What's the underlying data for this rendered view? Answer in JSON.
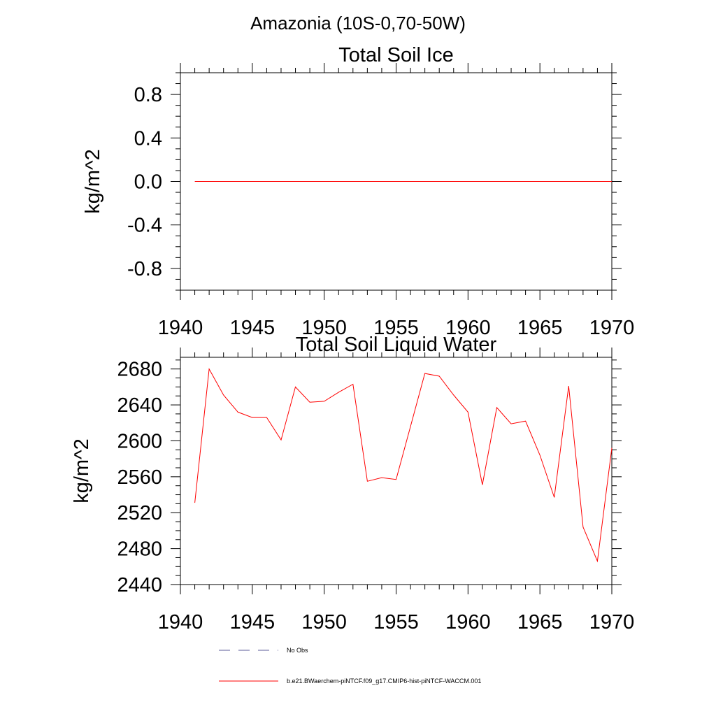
{
  "figure": {
    "main_title": "Amazonia (10S-0,70-50W)"
  },
  "legend": {
    "obs_label": "No Obs",
    "obs_color": "#5b5b9a",
    "model_label": "b.e21.BWaerchem-piNTCF.f09_g17.CMIP6-hist-piNTCF-WACCM.001",
    "model_color": "#ff0000"
  },
  "chart_data": [
    {
      "type": "line",
      "title": "Total Soil Ice",
      "xlabel": "",
      "ylabel": "kg/m^2",
      "xlim": [
        1940,
        1970
      ],
      "ylim": [
        -1.0,
        1.0
      ],
      "x_ticks": [
        1940,
        1945,
        1950,
        1955,
        1960,
        1965,
        1970
      ],
      "y_ticks": [
        -0.8,
        -0.4,
        0.0,
        0.4,
        0.8
      ],
      "y_tick_labels": [
        "-0.8",
        "-0.4",
        "0.0",
        "0.4",
        "0.8"
      ],
      "y_minor_step": 0.1,
      "x_minor_step": 1,
      "grid": false,
      "series": [
        {
          "color": "#ff0000",
          "x": [
            1941,
            1942,
            1943,
            1944,
            1945,
            1946,
            1947,
            1948,
            1949,
            1950,
            1951,
            1952,
            1953,
            1954,
            1955,
            1956,
            1957,
            1958,
            1959,
            1960,
            1961,
            1962,
            1963,
            1964,
            1965,
            1966,
            1967,
            1968,
            1969,
            1970
          ],
          "y": [
            0,
            0,
            0,
            0,
            0,
            0,
            0,
            0,
            0,
            0,
            0,
            0,
            0,
            0,
            0,
            0,
            0,
            0,
            0,
            0,
            0,
            0,
            0,
            0,
            0,
            0,
            0,
            0,
            0,
            0
          ]
        }
      ]
    },
    {
      "type": "line",
      "title": "Total Soil Liquid Water",
      "xlabel": "",
      "ylabel": "kg/m^2",
      "xlim": [
        1940,
        1970
      ],
      "ylim": [
        2440,
        2693
      ],
      "x_ticks": [
        1940,
        1945,
        1950,
        1955,
        1960,
        1965,
        1970
      ],
      "y_ticks": [
        2440,
        2480,
        2520,
        2560,
        2600,
        2640,
        2680
      ],
      "y_tick_labels": [
        "2440",
        "2480",
        "2520",
        "2560",
        "2600",
        "2640",
        "2680"
      ],
      "y_minor_step": 10,
      "x_minor_step": 1,
      "grid": false,
      "series": [
        {
          "color": "#ff0000",
          "x": [
            1941,
            1942,
            1943,
            1944,
            1945,
            1946,
            1947,
            1948,
            1949,
            1950,
            1951,
            1952,
            1953,
            1954,
            1955,
            1956,
            1957,
            1958,
            1959,
            1960,
            1961,
            1962,
            1963,
            1964,
            1965,
            1966,
            1967,
            1968,
            1969,
            1970
          ],
          "y": [
            2531,
            2680,
            2651,
            2632,
            2626,
            2626,
            2601,
            2660,
            2643,
            2644,
            2654,
            2663,
            2555,
            2559,
            2557,
            2616,
            2675,
            2672,
            2651,
            2632,
            2551,
            2637,
            2619,
            2622,
            2584,
            2537,
            2661,
            2504,
            2466,
            2592
          ]
        }
      ]
    }
  ]
}
